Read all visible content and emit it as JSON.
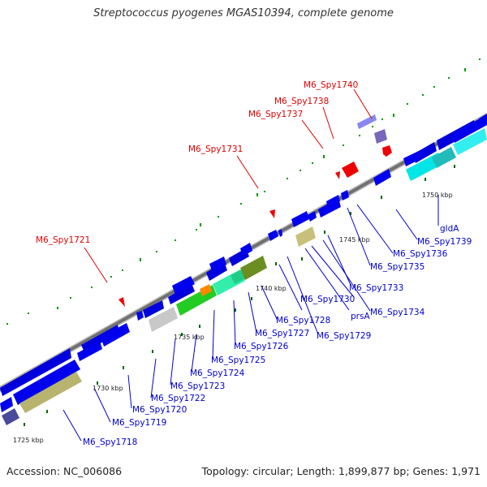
{
  "title": "Streptococcus pyogenes MGAS10394, complete genome",
  "footer": {
    "accession": "Accession: NC_006086",
    "summary": "Topology: circular; Length: 1,899,877 bp; Genes: 1,971"
  },
  "colors": {
    "backbone": "#777777",
    "forward_gene": "#0000dd",
    "reverse_gene": "#0000ee",
    "highlight": "#ee0000",
    "label_blue": "#0000cc",
    "label_red": "#dd0000",
    "tick": "#006600"
  },
  "scale_labels": [
    "1725 kbp",
    "1730 kbp",
    "1735 kbp",
    "1740 kbp",
    "1745 kbp",
    "1750 kbp"
  ],
  "gene_labels": [
    "M6_Spy1718",
    "M6_Spy1719",
    "M6_Spy1720",
    "M6_Spy1722",
    "M6_Spy1723",
    "M6_Spy1724",
    "M6_Spy1725",
    "M6_Spy1726",
    "M6_Spy1727",
    "M6_Spy1728",
    "M6_Spy1729",
    "prsA",
    "M6_Spy1730",
    "M6_Spy1734",
    "M6_Spy1733",
    "M6_Spy1735",
    "M6_Spy1736",
    "M6_Spy1739",
    "gldA"
  ],
  "highlight_labels": [
    "M6_Spy1721",
    "M6_Spy1731",
    "M6_Spy1737",
    "M6_Spy1738",
    "M6_Spy1740"
  ]
}
